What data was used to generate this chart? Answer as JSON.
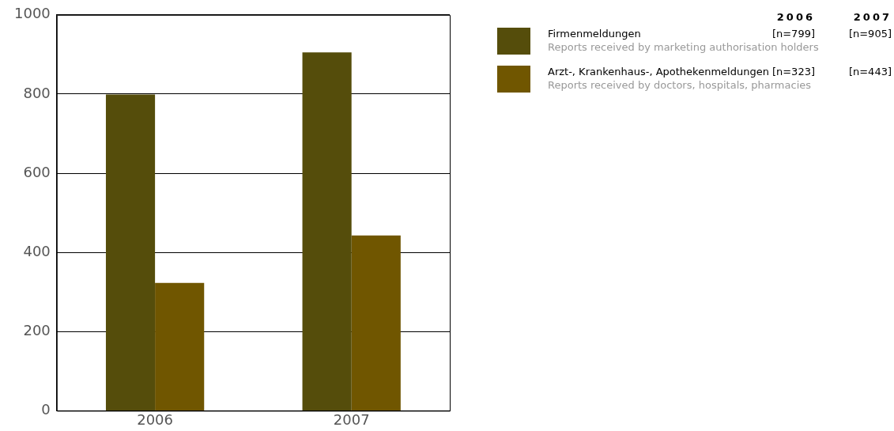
{
  "chart_data": {
    "type": "bar",
    "categories": [
      "2006",
      "2007"
    ],
    "series": [
      {
        "name": "Firmenmeldungen",
        "color": "#554d0b",
        "values": [
          799,
          905
        ]
      },
      {
        "name": "Arzt-, Krankenhaus-, Apothekenmeldungen",
        "color": "#705600",
        "values": [
          323,
          443
        ]
      }
    ],
    "annotations": [
      "Reports received by marketing authorisation holders",
      "Reports received by doctors, hospitals, pharmacies",
      "[n=799]",
      "[n=905]",
      "[n=323]",
      "[n=443]"
    ],
    "ylim": [
      0,
      1000
    ],
    "yticks": [
      0,
      200,
      400,
      600,
      800,
      1000
    ],
    "grid": "y",
    "legend": "top right"
  }
}
